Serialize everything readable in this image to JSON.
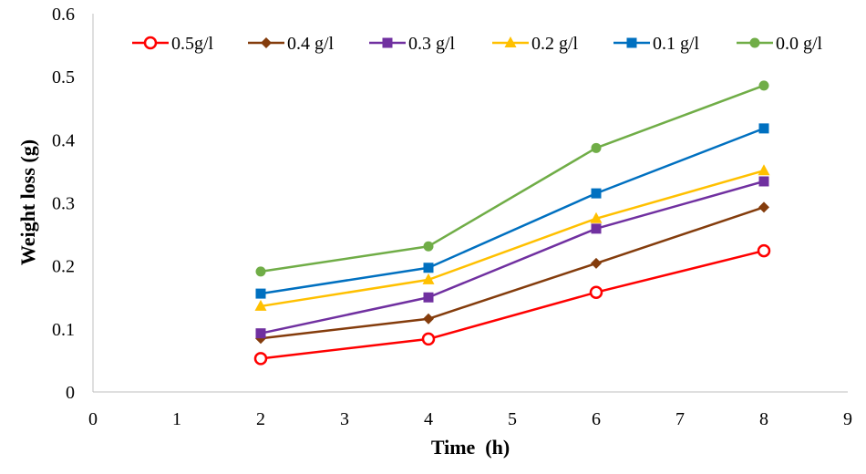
{
  "chart_data": {
    "type": "line",
    "title": "",
    "xlabel": "Time  (h)",
    "ylabel": "Weight loss (g)",
    "xlim": [
      0,
      9
    ],
    "ylim": [
      0,
      0.6
    ],
    "x_ticks": [
      "0",
      "1",
      "2",
      "3",
      "4",
      "5",
      "6",
      "7",
      "8",
      "9"
    ],
    "y_ticks": [
      "0",
      "0.1",
      "0.2",
      "0.3",
      "0.4",
      "0.5",
      "0.6"
    ],
    "grid": false,
    "legend_position": "top",
    "x": [
      2,
      4,
      6,
      8
    ],
    "series": [
      {
        "name": "0.5g/l",
        "color": "#ff0000",
        "marker": "open-circle",
        "values": [
          0.053,
          0.084,
          0.158,
          0.224
        ]
      },
      {
        "name": "0.4 g/l",
        "color": "#843c0c",
        "marker": "diamond",
        "values": [
          0.085,
          0.116,
          0.204,
          0.293
        ]
      },
      {
        "name": "0.3 g/l",
        "color": "#7030a0",
        "marker": "square",
        "values": [
          0.093,
          0.15,
          0.259,
          0.334
        ]
      },
      {
        "name": "0.2 g/l",
        "color": "#ffc000",
        "marker": "triangle",
        "values": [
          0.136,
          0.178,
          0.275,
          0.351
        ]
      },
      {
        "name": "0.1 g/l",
        "color": "#0070c0",
        "marker": "square",
        "values": [
          0.156,
          0.197,
          0.315,
          0.418
        ]
      },
      {
        "name": "0.0 g/l",
        "color": "#70ad47",
        "marker": "circle",
        "values": [
          0.191,
          0.231,
          0.387,
          0.486
        ]
      }
    ]
  }
}
